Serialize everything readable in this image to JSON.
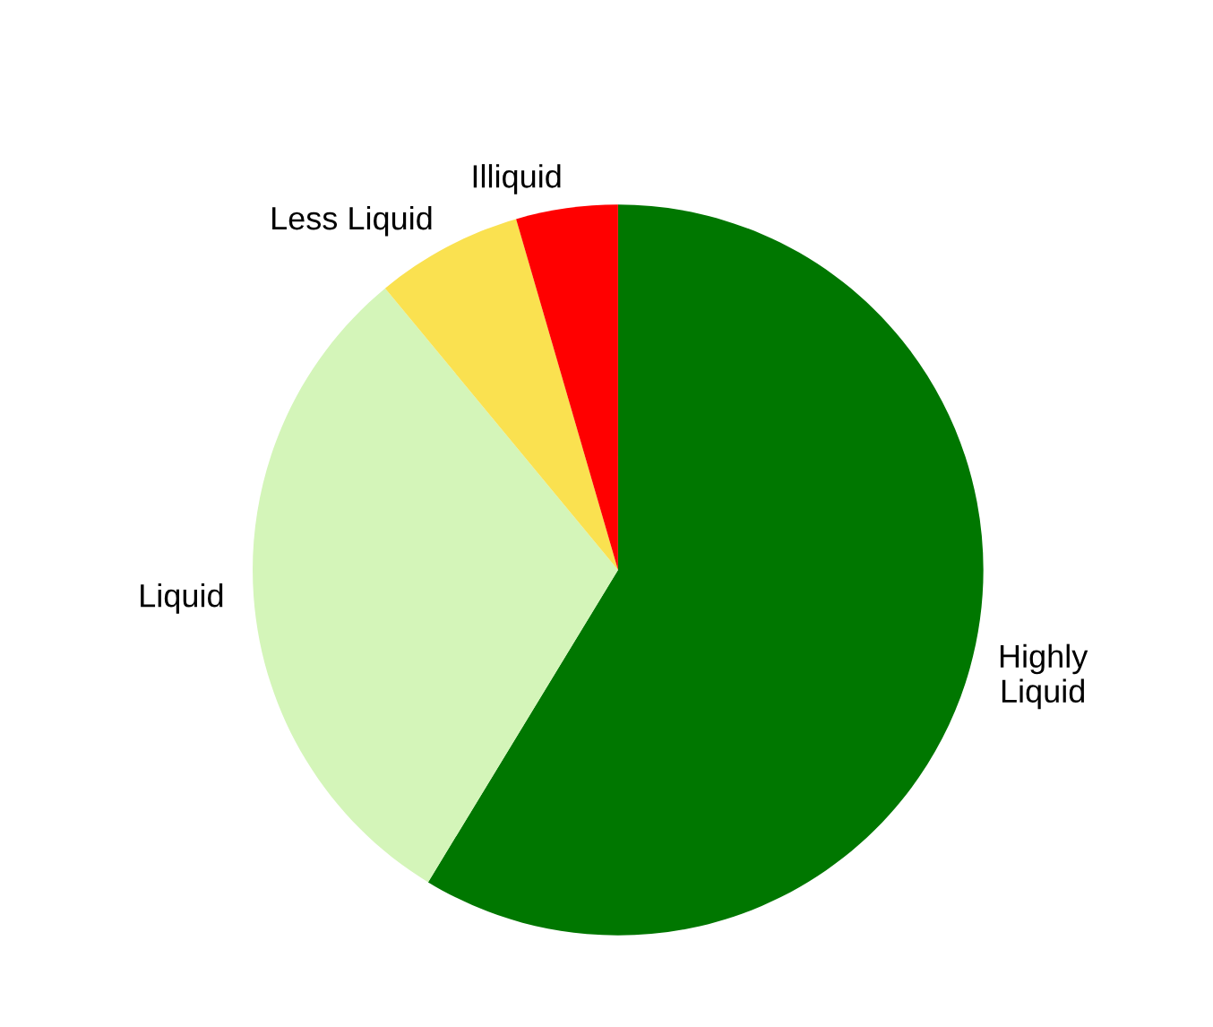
{
  "chart_data": {
    "type": "pie",
    "categories": [
      "Highly\nLiquid",
      "Liquid",
      "Less Liquid",
      "Illiquid"
    ],
    "values": [
      58.7,
      30.3,
      6.5,
      4.5
    ],
    "colors": [
      "#007700",
      "#d4f5b9",
      "#fae150",
      "#ff0000"
    ],
    "legend": false
  }
}
